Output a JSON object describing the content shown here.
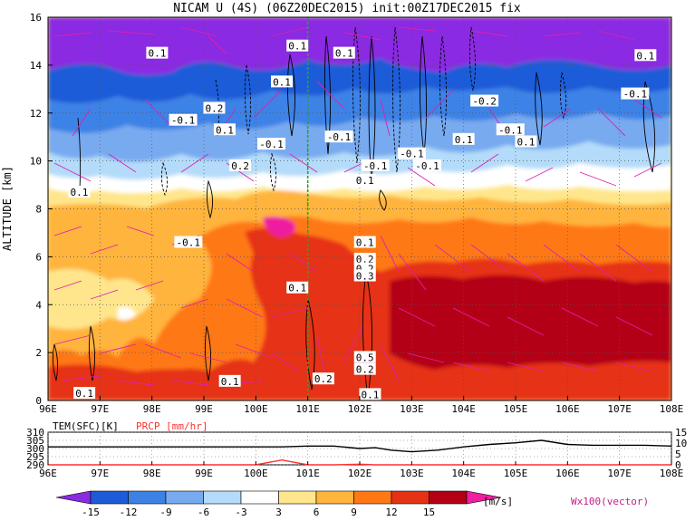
{
  "title": "NICAM U (4S) (06Z20DEC2015) init:00Z17DEC2015 fix",
  "chart_data": [
    {
      "type": "heatmap",
      "title": "NICAM U (4S) (06Z20DEC2015) init:00Z17DEC2015 fix",
      "ylabel": "ALTITUDE [km]",
      "xlabel": "",
      "x_ticks": [
        "96E",
        "97E",
        "98E",
        "99E",
        "100E",
        "101E",
        "102E",
        "103E",
        "104E",
        "105E",
        "106E",
        "107E",
        "108E"
      ],
      "y_ticks": [
        "0",
        "2",
        "4",
        "6",
        "8",
        "10",
        "12",
        "14",
        "16"
      ],
      "xlim": [
        96,
        108
      ],
      "ylim": [
        0,
        16
      ],
      "grid": true,
      "colorbar": {
        "unit": "[m/s]",
        "levels": [
          "-15",
          "-12",
          "-9",
          "-6",
          "-3",
          "3",
          "6",
          "9",
          "12",
          "15"
        ],
        "colors": [
          "#8a2be2",
          "#1e5bd8",
          "#3c82e6",
          "#78aaf0",
          "#b4dcfa",
          "#ffffff",
          "#ffe68c",
          "#ffb43c",
          "#ff7814",
          "#e63214",
          "#b40014",
          "#f01ea0"
        ]
      },
      "vector_label": "Wx100(vector)",
      "marker_lon": 101,
      "contour_labels": [
        {
          "text": "0.1",
          "lon": 100.5,
          "alt": 13.3
        },
        {
          "text": "0.1",
          "lon": 99.4,
          "alt": 11.3
        },
        {
          "text": "-0.1",
          "lon": 98.6,
          "alt": 11.7
        },
        {
          "text": "0.1",
          "lon": 98.1,
          "alt": 14.5
        },
        {
          "text": "0.1",
          "lon": 101.7,
          "alt": 14.5
        },
        {
          "text": "0.1",
          "lon": 100.8,
          "alt": 14.8
        },
        {
          "text": "0.2",
          "lon": 99.2,
          "alt": 12.2
        },
        {
          "text": "-0.1",
          "lon": 100.3,
          "alt": 10.7
        },
        {
          "text": "0.2",
          "lon": 99.7,
          "alt": 9.8
        },
        {
          "text": "-0.1",
          "lon": 101.6,
          "alt": 11.0
        },
        {
          "text": "-0.1",
          "lon": 102.3,
          "alt": 9.8
        },
        {
          "text": "-0.1",
          "lon": 103.0,
          "alt": 10.3
        },
        {
          "text": "-0.1",
          "lon": 103.3,
          "alt": 9.8
        },
        {
          "text": "0.1",
          "lon": 102.1,
          "alt": 9.2
        },
        {
          "text": "0.1",
          "lon": 104.0,
          "alt": 10.9
        },
        {
          "text": "-0.2",
          "lon": 104.4,
          "alt": 12.5
        },
        {
          "text": "-0.1",
          "lon": 104.9,
          "alt": 11.3
        },
        {
          "text": "0.1",
          "lon": 105.2,
          "alt": 10.8
        },
        {
          "text": "0.1",
          "lon": 107.5,
          "alt": 14.4
        },
        {
          "text": "-0.1",
          "lon": 107.3,
          "alt": 12.8
        },
        {
          "text": "0.1",
          "lon": 96.6,
          "alt": 8.7
        },
        {
          "text": "-0.1",
          "lon": 98.7,
          "alt": 6.6
        },
        {
          "text": "0.1",
          "lon": 102.1,
          "alt": 6.6
        },
        {
          "text": "0.2",
          "lon": 102.1,
          "alt": 5.9
        },
        {
          "text": "0.2",
          "lon": 102.1,
          "alt": 5.5
        },
        {
          "text": "0.3",
          "lon": 102.1,
          "alt": 5.2
        },
        {
          "text": "0.1",
          "lon": 100.8,
          "alt": 4.7
        },
        {
          "text": "0.5",
          "lon": 102.1,
          "alt": 1.8
        },
        {
          "text": "0.2",
          "lon": 102.1,
          "alt": 1.3
        },
        {
          "text": "0.1",
          "lon": 99.5,
          "alt": 0.8
        },
        {
          "text": "0.2",
          "lon": 101.3,
          "alt": 0.9
        },
        {
          "text": "0.1",
          "lon": 102.2,
          "alt": 0.25
        },
        {
          "text": "0.1",
          "lon": 96.7,
          "alt": 0.3
        }
      ]
    },
    {
      "type": "line",
      "title": "",
      "series": [
        {
          "name": "TEM(SFC)[K]",
          "color": "#000000"
        },
        {
          "name": "PRCP [mm/hr]",
          "color": "#ff3030"
        }
      ],
      "x_ticks": [
        "96E",
        "97E",
        "98E",
        "99E",
        "100E",
        "101E",
        "102E",
        "103E",
        "104E",
        "105E",
        "106E",
        "107E",
        "108E"
      ],
      "y_left_ticks": [
        "310",
        "305",
        "300",
        "295",
        "290"
      ],
      "y_left_range": [
        290,
        310
      ],
      "y_right_ticks": [
        "15",
        "10",
        "5",
        "0"
      ],
      "y_right_range": [
        0,
        15
      ],
      "x": [
        96,
        96.5,
        97,
        97.5,
        98,
        98.5,
        99,
        99.5,
        100,
        100.5,
        101,
        101.5,
        102,
        102.3,
        102.6,
        103,
        103.5,
        104,
        104.5,
        105,
        105.5,
        106,
        106.5,
        107,
        107.5,
        108
      ],
      "tem": [
        301,
        301,
        301,
        301,
        301,
        301,
        301,
        301,
        301,
        301,
        301.5,
        301.5,
        300,
        300.5,
        299,
        298,
        299,
        301,
        302.5,
        303.5,
        305,
        302.5,
        302,
        302,
        302,
        301.5
      ],
      "prcp": [
        0,
        0,
        0,
        0,
        0,
        0,
        0,
        0,
        0,
        2.2,
        0,
        0,
        0.3,
        0,
        0,
        0,
        0,
        0,
        0,
        0,
        0,
        0,
        0,
        0,
        0,
        0
      ]
    }
  ]
}
